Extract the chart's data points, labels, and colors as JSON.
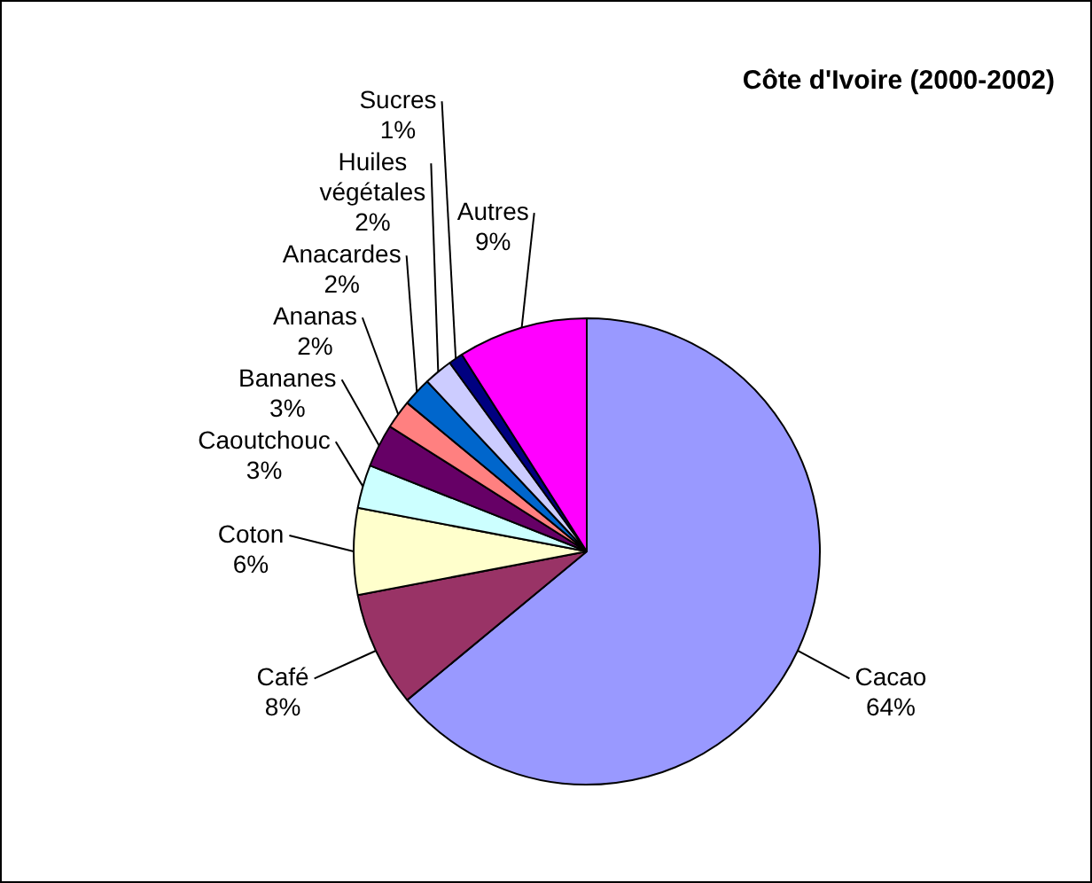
{
  "chart_data": {
    "type": "pie",
    "title": "Côte d'Ivoire (2000-2002)",
    "categories": [
      "Cacao",
      "Café",
      "Coton",
      "Caoutchouc",
      "Bananes",
      "Ananas",
      "Anacardes",
      "Huiles végétales",
      "Sucres",
      "Autres"
    ],
    "values": [
      64,
      8,
      6,
      3,
      3,
      2,
      2,
      2,
      1,
      9
    ],
    "value_labels": [
      "64%",
      "8%",
      "6%",
      "3%",
      "3%",
      "2%",
      "2%",
      "2%",
      "1%",
      "9%"
    ],
    "colors": [
      "#9999ff",
      "#993366",
      "#ffffcc",
      "#ccffff",
      "#660066",
      "#ff8080",
      "#0066cc",
      "#ccccff",
      "#000080",
      "#ff00ff"
    ],
    "legend": false
  }
}
